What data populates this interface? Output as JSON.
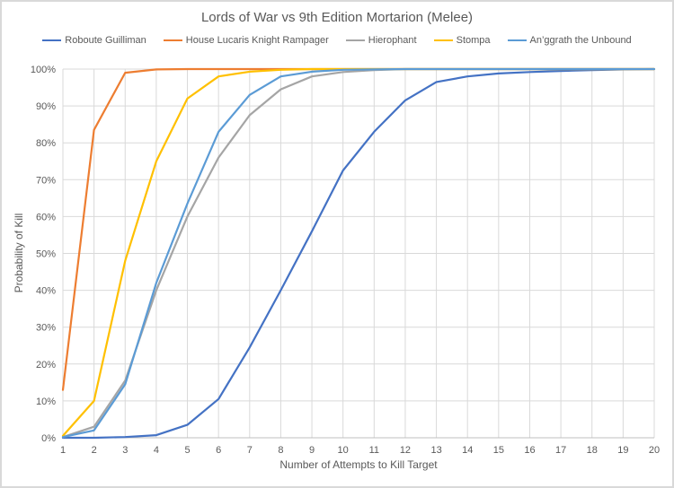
{
  "chart_data": {
    "type": "line",
    "title": "Lords of War vs 9th Edition Mortarion (Melee)",
    "xlabel": "Number of Attempts to Kill Target",
    "ylabel": "Probability of Kill",
    "x": [
      1,
      2,
      3,
      4,
      5,
      6,
      7,
      8,
      9,
      10,
      11,
      12,
      13,
      14,
      15,
      16,
      17,
      18,
      19,
      20
    ],
    "x_tick_labels": [
      "1",
      "2",
      "3",
      "4",
      "5",
      "6",
      "7",
      "8",
      "9",
      "10",
      "11",
      "12",
      "13",
      "14",
      "15",
      "16",
      "17",
      "18",
      "19",
      "20"
    ],
    "y_tick_labels": [
      "0%",
      "10%",
      "20%",
      "30%",
      "40%",
      "50%",
      "60%",
      "70%",
      "80%",
      "90%",
      "100%"
    ],
    "xlim": [
      1,
      20
    ],
    "ylim": [
      0,
      100
    ],
    "y_tick_step": 10,
    "grid": true,
    "legend_position": "top",
    "series": [
      {
        "name": "Roboute Guilliman",
        "color": "#4472C4",
        "values": [
          0,
          0,
          0.2,
          0.7,
          3.5,
          10.5,
          24.5,
          40,
          56,
          72.5,
          83,
          91.5,
          96.5,
          98,
          98.8,
          99.2,
          99.5,
          99.7,
          99.9,
          100
        ]
      },
      {
        "name": "House Lucaris Knight Rampager",
        "color": "#ED7D31",
        "values": [
          13,
          83.5,
          99,
          99.9,
          100,
          100,
          100,
          100,
          100,
          100,
          100,
          100,
          100,
          100,
          100,
          100,
          100,
          100,
          100,
          100
        ]
      },
      {
        "name": "Hierophant",
        "color": "#A5A5A5",
        "values": [
          0.2,
          3,
          15.5,
          40,
          60,
          76,
          87.5,
          94.5,
          98,
          99.2,
          99.7,
          100,
          100,
          100,
          100,
          100,
          100,
          100,
          100,
          100
        ]
      },
      {
        "name": "Stompa",
        "color": "#FFC000",
        "values": [
          0.5,
          10,
          48,
          75,
          92,
          98,
          99.3,
          99.8,
          100,
          100,
          100,
          100,
          100,
          100,
          100,
          100,
          100,
          100,
          100,
          100
        ]
      },
      {
        "name": "An’ggrath the Unbound",
        "color": "#5B9BD5",
        "values": [
          0.2,
          2,
          14.5,
          42,
          63.5,
          83,
          93,
          98,
          99.3,
          99.8,
          99.9,
          100,
          100,
          100,
          100,
          100,
          100,
          100,
          100,
          100
        ]
      }
    ]
  },
  "styles": {
    "grid_color": "#D9D9D9",
    "axis_line_color": "#BFBFBF",
    "text_color": "#595959",
    "frame_border_color": "#D9D9D9",
    "background": "#FFFFFF"
  }
}
